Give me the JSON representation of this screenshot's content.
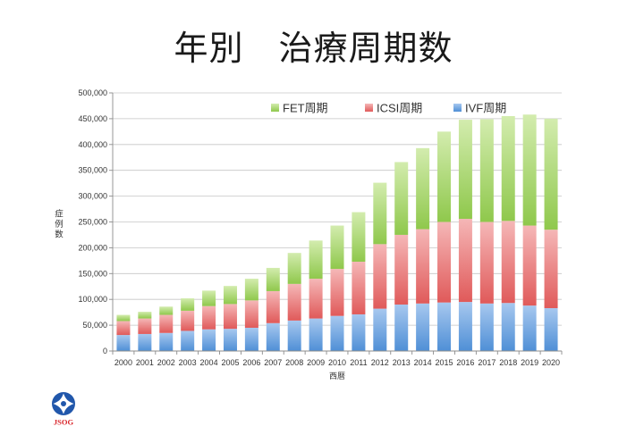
{
  "title": "年別　治療周期数",
  "chart_data": {
    "type": "bar",
    "stacked": true,
    "categories": [
      "2000",
      "2001",
      "2002",
      "2003",
      "2004",
      "2005",
      "2006",
      "2007",
      "2008",
      "2009",
      "2010",
      "2011",
      "2012",
      "2013",
      "2014",
      "2015",
      "2016",
      "2017",
      "2018",
      "2019",
      "2020"
    ],
    "series": [
      {
        "name": "IVF周期",
        "color": "#4f8fd6",
        "color_light": "#a7c8ef",
        "values": [
          31000,
          33000,
          35000,
          39000,
          42000,
          43000,
          45000,
          54000,
          59000,
          63000,
          68000,
          71000,
          82000,
          90000,
          92000,
          94000,
          95000,
          92000,
          93000,
          88000,
          83000
        ]
      },
      {
        "name": "ICSI周期",
        "color": "#e05a5a",
        "color_light": "#f5b7b7",
        "values": [
          27000,
          30000,
          35000,
          39000,
          45000,
          48000,
          53000,
          62000,
          71000,
          77000,
          91000,
          102000,
          125000,
          135000,
          144000,
          156000,
          161000,
          158000,
          159000,
          155000,
          152000
        ]
      },
      {
        "name": "FET周期",
        "color": "#8fc84c",
        "color_light": "#d3ecae",
        "values": [
          12000,
          13000,
          16000,
          24000,
          30000,
          35000,
          42000,
          45000,
          60000,
          74000,
          84000,
          96000,
          119000,
          141000,
          157000,
          175000,
          192000,
          199000,
          203000,
          215000,
          215000
        ]
      }
    ],
    "xlabel": "西暦",
    "ylabel": "症例数",
    "ylim": [
      0,
      500000
    ],
    "yticks": [
      "0",
      "50,000",
      "100,000",
      "150,000",
      "200,000",
      "250,000",
      "300,000",
      "350,000",
      "400,000",
      "450,000",
      "500,000"
    ],
    "grid": true,
    "legend_position": "top"
  },
  "logo": {
    "text": "JSOG",
    "emblem_color": "#2157ab",
    "text_color": "#d9262b"
  }
}
